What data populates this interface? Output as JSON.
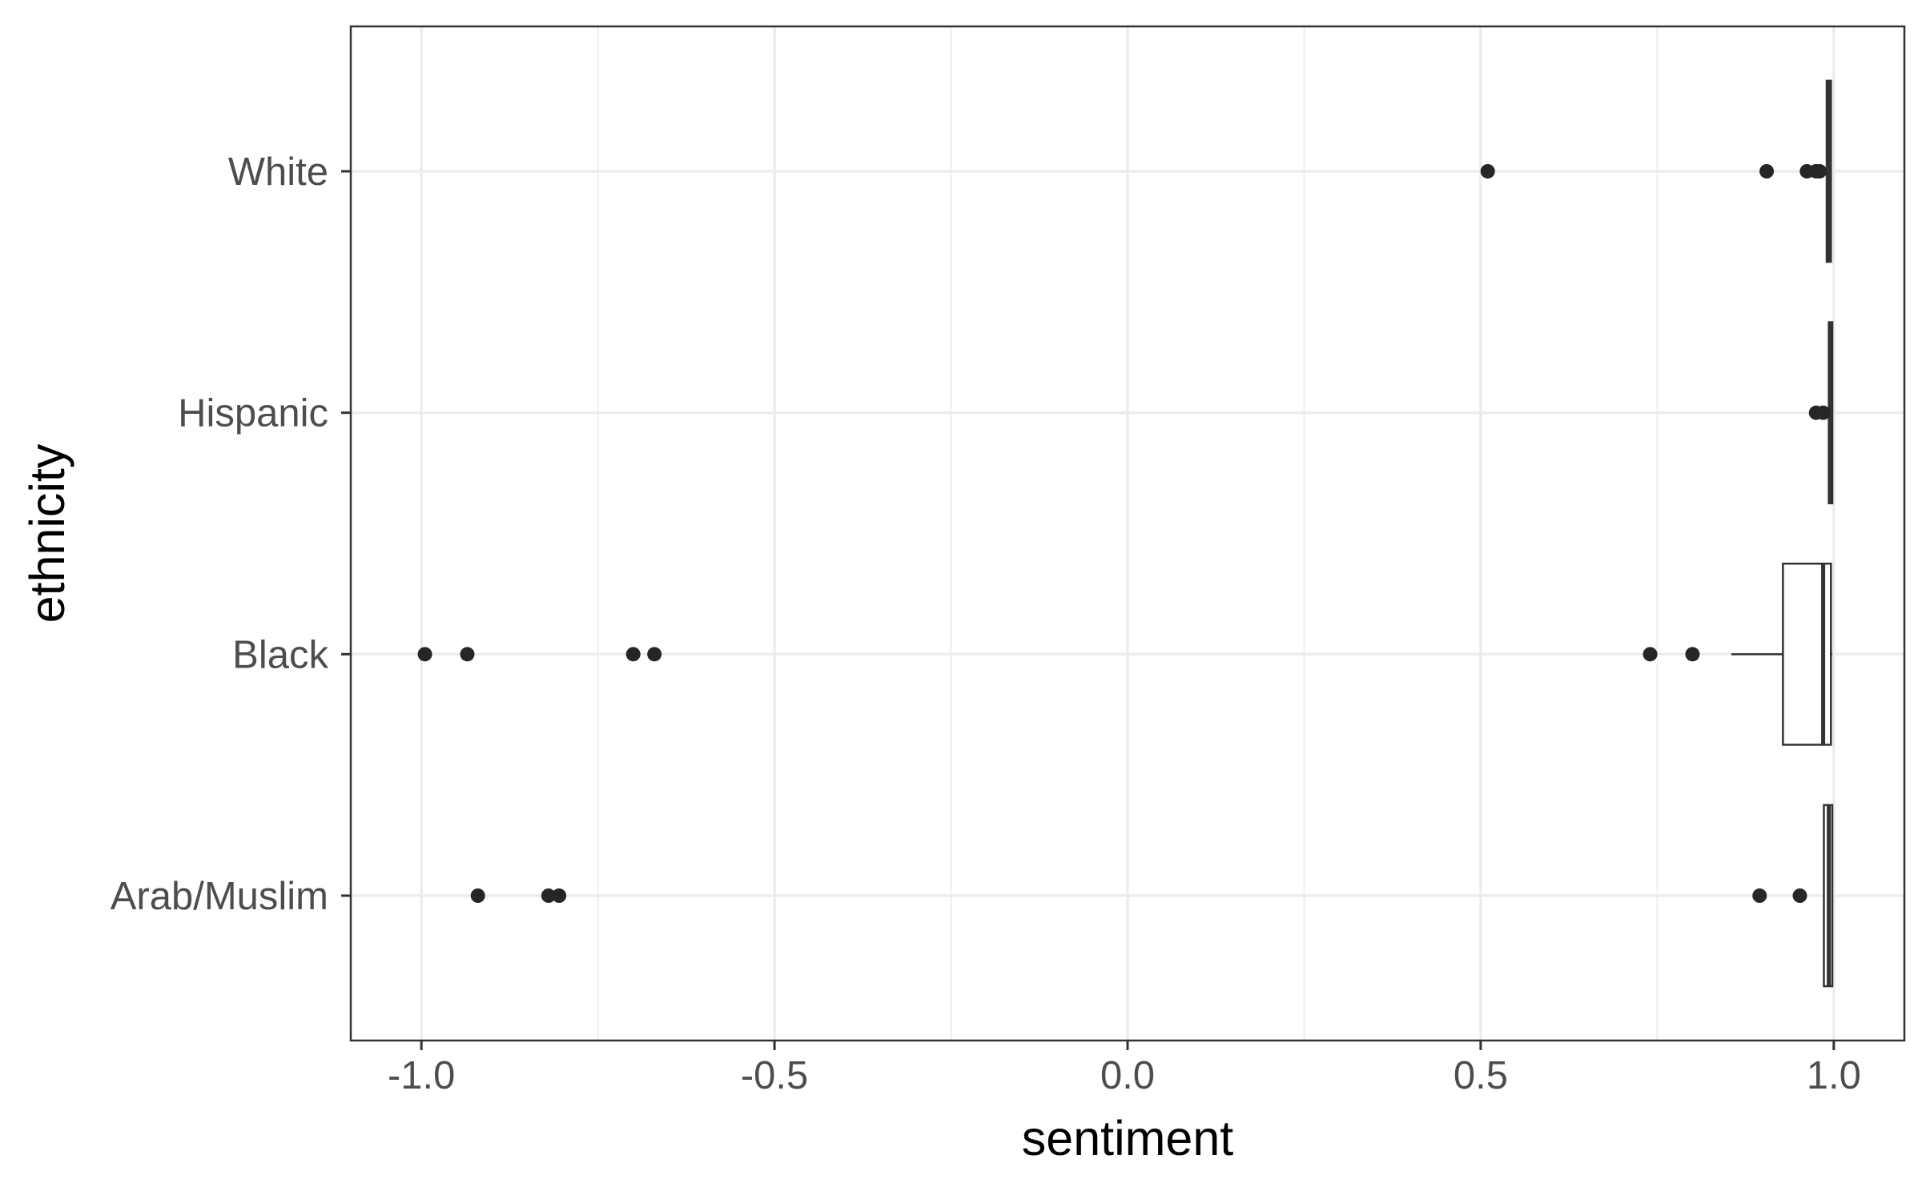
{
  "chart_data": {
    "type": "boxplot",
    "orientation": "horizontal",
    "xlabel": "sentiment",
    "ylabel": "ethnicity",
    "xlim": [
      -1.1,
      1.1
    ],
    "x_ticks": [
      -1.0,
      -0.5,
      0.0,
      0.5,
      1.0
    ],
    "x_tick_labels": [
      "-1.0",
      "-0.5",
      "0.0",
      "0.5",
      "1.0"
    ],
    "x_minor_ticks": [
      -0.75,
      -0.25,
      0.25,
      0.75
    ],
    "categories": [
      "White",
      "Hispanic",
      "Black",
      "Arab/Muslim"
    ],
    "grid": true,
    "colors": {
      "grid": "#ebebeb",
      "frame": "#333333",
      "box_fill": "#ffffff",
      "box_stroke": "#333333",
      "point": "#262626"
    },
    "series": [
      {
        "category": "White",
        "q1": 0.99,
        "median": 0.993,
        "q3": 0.996,
        "whisker_low": 0.99,
        "whisker_high": 0.997,
        "outliers": [
          0.51,
          0.905,
          0.962,
          0.975,
          0.98
        ]
      },
      {
        "category": "Hispanic",
        "q1": 0.993,
        "median": 0.996,
        "q3": 0.998,
        "whisker_low": 0.993,
        "whisker_high": 0.998,
        "outliers": [
          0.975,
          0.985
        ]
      },
      {
        "category": "Black",
        "q1": 0.928,
        "median": 0.985,
        "q3": 0.996,
        "whisker_low": 0.855,
        "whisker_high": 0.998,
        "outliers": [
          -0.995,
          -0.935,
          -0.7,
          -0.67,
          0.74,
          0.8
        ]
      },
      {
        "category": "Arab/Muslim",
        "q1": 0.986,
        "median": 0.993,
        "q3": 0.998,
        "whisker_low": 0.986,
        "whisker_high": 0.998,
        "outliers": [
          -0.92,
          -0.82,
          -0.805,
          0.895,
          0.952
        ]
      }
    ]
  }
}
